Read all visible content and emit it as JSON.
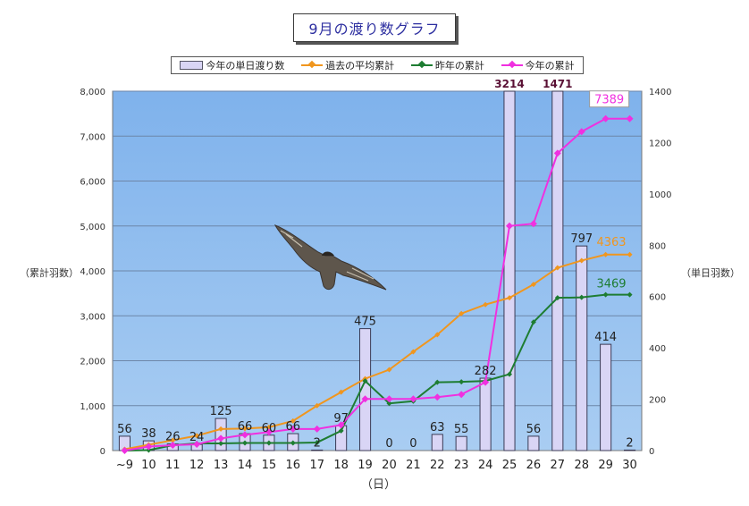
{
  "title": "9月の渡り数グラフ",
  "chart_data": {
    "type": "bar+line",
    "categories": [
      "~9",
      "10",
      "11",
      "12",
      "13",
      "14",
      "15",
      "16",
      "17",
      "18",
      "19",
      "20",
      "21",
      "22",
      "23",
      "24",
      "25",
      "26",
      "27",
      "28",
      "29",
      "30"
    ],
    "xlabel": "（日）",
    "ylabel_left": "（累計羽数）",
    "ylabel_right": "（単日羽数）",
    "ylim_left": [
      0,
      8000
    ],
    "yticks_left": [
      "0",
      "1,000",
      "2,000",
      "3,000",
      "4,000",
      "5,000",
      "6,000",
      "7,000",
      "8,000"
    ],
    "ylim_right": [
      0,
      1400
    ],
    "yticks_right": [
      "0",
      "200",
      "400",
      "600",
      "800",
      "1000",
      "1200",
      "1400"
    ],
    "bars": {
      "name": "今年の単日渡り数",
      "color": "#d9d5f5",
      "values": [
        56,
        38,
        26,
        24,
        125,
        66,
        60,
        66,
        2,
        97,
        475,
        0,
        0,
        63,
        55,
        282,
        3214,
        56,
        1471,
        797,
        414,
        2
      ],
      "labels": [
        "56",
        "38",
        "26",
        "24",
        "125",
        "66",
        "60",
        "66",
        "2",
        "97",
        "475",
        "0",
        "0",
        "63",
        "55",
        "282",
        "3214",
        "56",
        "1471",
        "797",
        "414",
        "2"
      ]
    },
    "series": [
      {
        "name": "過去の平均累計",
        "color": "#f0961e",
        "values": [
          30,
          130,
          230,
          330,
          480,
          490,
          520,
          660,
          1000,
          1300,
          1600,
          1800,
          2200,
          2580,
          3050,
          3250,
          3400,
          3700,
          4070,
          4230,
          4363,
          4363
        ]
      },
      {
        "name": "昨年の累計",
        "color": "#1e7d32",
        "values": [
          0,
          10,
          120,
          160,
          160,
          170,
          170,
          170,
          180,
          440,
          1550,
          1050,
          1100,
          1520,
          1530,
          1550,
          1700,
          2860,
          3400,
          3410,
          3469,
          3469
        ]
      },
      {
        "name": "今年の累計",
        "color": "#f030e0",
        "values": [
          0,
          90,
          120,
          140,
          270,
          350,
          410,
          480,
          480,
          570,
          1150,
          1150,
          1150,
          1190,
          1250,
          1520,
          5000,
          5050,
          6620,
          7100,
          7389,
          7389
        ]
      }
    ],
    "annotations": {
      "average_final": "4363",
      "last_year_final": "3469",
      "this_year_final": "7389"
    }
  }
}
